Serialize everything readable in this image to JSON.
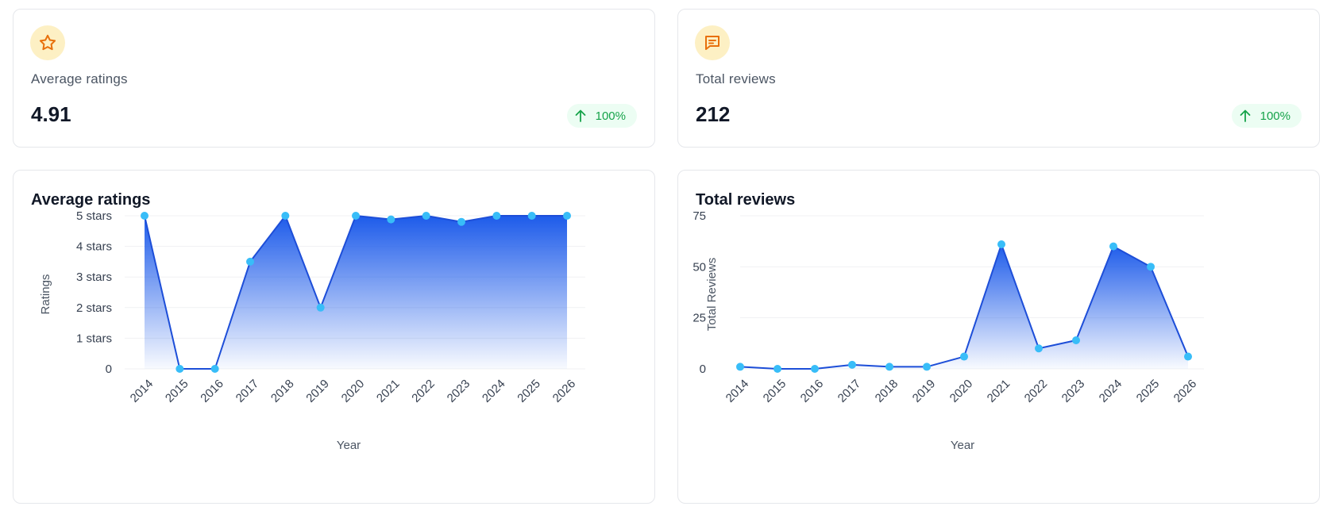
{
  "stats": [
    {
      "label": "Average ratings",
      "value": "4.91",
      "change": "100%",
      "icon": "star-icon"
    },
    {
      "label": "Total reviews",
      "value": "212",
      "change": "100%",
      "icon": "message-icon"
    }
  ],
  "colors": {
    "line": "#1d4ed8",
    "point": "#38bdf8",
    "fill_top": "#1d5bea",
    "icon_bg": "#fdf0c4",
    "icon_stroke": "#e8700c",
    "badge_bg": "#ecfdf3",
    "badge_text": "#16a34a"
  },
  "chart_data": [
    {
      "type": "area",
      "title": "Average ratings",
      "xlabel": "Year",
      "ylabel": "Ratings",
      "x": [
        "2014",
        "2015",
        "2016",
        "2017",
        "2018",
        "2019",
        "2020",
        "2021",
        "2022",
        "2023",
        "2024",
        "2025",
        "2026"
      ],
      "values": [
        5,
        0,
        0,
        3.5,
        5,
        2,
        5,
        4.88,
        5,
        4.8,
        5,
        5,
        5
      ],
      "ylim": [
        0,
        5
      ],
      "yticks": [
        0,
        1,
        2,
        3,
        4,
        5
      ],
      "ytick_labels": [
        "0",
        "1 stars",
        "2 stars",
        "3 stars",
        "4 stars",
        "5 stars"
      ],
      "grid": true,
      "legend": "none"
    },
    {
      "type": "area",
      "title": "Total reviews",
      "xlabel": "Year",
      "ylabel": "Total Reviews",
      "x": [
        "2014",
        "2015",
        "2016",
        "2017",
        "2018",
        "2019",
        "2020",
        "2021",
        "2022",
        "2023",
        "2024",
        "2025",
        "2026"
      ],
      "values": [
        1,
        0,
        0,
        2,
        1,
        1,
        6,
        61,
        10,
        14,
        60,
        50,
        6
      ],
      "ylim": [
        0,
        75
      ],
      "yticks": [
        0,
        25,
        50,
        75
      ],
      "ytick_labels": [
        "0",
        "25",
        "50",
        "75"
      ],
      "grid": true,
      "legend": "none"
    }
  ]
}
